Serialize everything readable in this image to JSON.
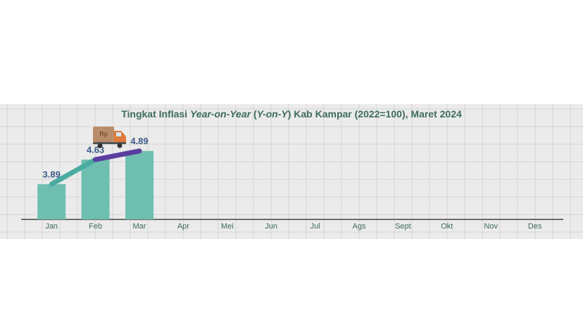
{
  "chart_data": {
    "type": "bar",
    "title": [
      "Tingkat Inflasi ",
      "Year-on-Year",
      " (",
      "Y-on-Y",
      ") Kab Kampar (2022=100), Maret 2024"
    ],
    "categories": [
      "Jan",
      "Feb",
      "Mar",
      "Apr",
      "Mei",
      "Jun",
      "Jul",
      "Ags",
      "Sept",
      "Okt",
      "Nov",
      "Des"
    ],
    "values": [
      3.89,
      4.63,
      4.89,
      null,
      null,
      null,
      null,
      null,
      null,
      null,
      null,
      null
    ],
    "color": "#6fbfb1",
    "line_colors": [
      "#4aaba0",
      "#5a3d9e"
    ],
    "ylim": [
      2.83,
      6.3
    ]
  }
}
